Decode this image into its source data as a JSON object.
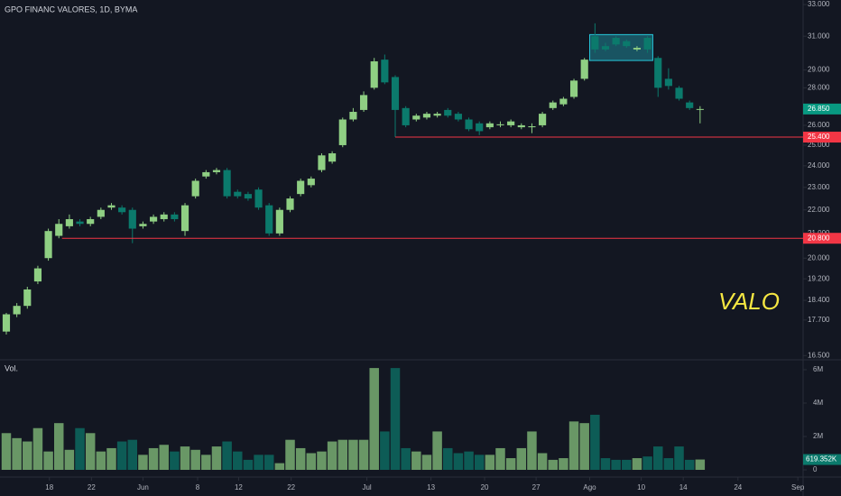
{
  "chart_data": {
    "type": "candlestick",
    "title": "GPO FINANC VALORES, 1D, BYMA",
    "volume_title": "Vol.",
    "annotation": "VALO",
    "up_color": "#8fcf83",
    "down_color": "#0b7a6c",
    "log_scale": true,
    "grid": false,
    "xlim": [
      -0.6,
      75.8
    ],
    "xticks": [
      {
        "value": 4.1,
        "label": "18"
      },
      {
        "value": 8.1,
        "label": "22"
      },
      {
        "value": 13,
        "label": "Jun"
      },
      {
        "value": 18.2,
        "label": "8"
      },
      {
        "value": 22.1,
        "label": "12"
      },
      {
        "value": 27.1,
        "label": "22"
      },
      {
        "value": 34.3,
        "label": "Jul"
      },
      {
        "value": 40.4,
        "label": "13"
      },
      {
        "value": 45.5,
        "label": "20"
      },
      {
        "value": 50.4,
        "label": "27"
      },
      {
        "value": 55.5,
        "label": "Ago"
      },
      {
        "value": 60.4,
        "label": "10"
      },
      {
        "value": 64.4,
        "label": "14"
      },
      {
        "value": 69.6,
        "label": "24"
      },
      {
        "value": 75.3,
        "label": "Sep"
      }
    ],
    "ylim": [
      16.39,
      33.3
    ],
    "yticks": [
      {
        "value": 16.5,
        "label": "16.500"
      },
      {
        "value": 17.7,
        "label": "17.700"
      },
      {
        "value": 18.4,
        "label": "18.400"
      },
      {
        "value": 19.2,
        "label": "19.200"
      },
      {
        "value": 20,
        "label": "20.000"
      },
      {
        "value": 21,
        "label": "21.000"
      },
      {
        "value": 22,
        "label": "22.000"
      },
      {
        "value": 23,
        "label": "23.000"
      },
      {
        "value": 24,
        "label": "24.000"
      },
      {
        "value": 25,
        "label": "25.000"
      },
      {
        "value": 26,
        "label": "26.000"
      },
      {
        "value": 28,
        "label": "28.000"
      },
      {
        "value": 29,
        "label": "29.000"
      },
      {
        "value": 31,
        "label": "31.000"
      },
      {
        "value": 33,
        "label": "33.000"
      }
    ],
    "open": [
      17.3,
      17.9,
      18.2,
      19.1,
      20.0,
      20.9,
      21.3,
      21.5,
      21.4,
      21.7,
      22.1,
      22.1,
      22.0,
      21.3,
      21.5,
      21.6,
      21.8,
      21.1,
      22.6,
      23.5,
      23.7,
      23.8,
      22.8,
      22.7,
      22.9,
      22.2,
      21.0,
      22.0,
      22.7,
      23.1,
      23.8,
      24.2,
      25.0,
      26.3,
      26.8,
      28.0,
      29.6,
      28.6,
      26.9,
      26.3,
      26.4,
      26.5,
      26.8,
      26.6,
      26.3,
      26.1,
      25.9,
      26.0,
      26.0,
      25.9,
      25.9,
      26.0,
      26.9,
      27.1,
      27.5,
      28.5,
      31.0,
      30.4,
      30.9,
      30.7,
      30.2,
      30.9,
      29.7,
      28.5,
      28.0,
      27.2,
      26.85
    ],
    "high": [
      17.95,
      18.3,
      18.9,
      19.7,
      21.2,
      21.6,
      21.8,
      21.6,
      21.7,
      22.1,
      22.3,
      22.2,
      22.1,
      21.5,
      21.8,
      21.9,
      21.9,
      22.3,
      23.4,
      23.8,
      23.9,
      23.9,
      22.9,
      22.8,
      23.0,
      22.3,
      22.1,
      22.6,
      23.4,
      23.5,
      24.6,
      24.7,
      26.4,
      26.9,
      27.8,
      29.7,
      29.9,
      28.7,
      27.0,
      26.6,
      26.7,
      26.7,
      26.9,
      26.7,
      26.4,
      26.2,
      26.2,
      26.2,
      26.3,
      26.1,
      26.1,
      26.7,
      27.3,
      27.5,
      28.5,
      29.7,
      31.8,
      30.6,
      31.0,
      30.8,
      30.4,
      31.0,
      29.8,
      29.1,
      28.1,
      27.3,
      27.0
    ],
    "low": [
      17.2,
      17.8,
      18.1,
      19.0,
      19.9,
      20.8,
      21.2,
      21.3,
      21.3,
      21.6,
      22.0,
      21.8,
      20.6,
      21.2,
      21.4,
      21.5,
      21.5,
      20.9,
      22.5,
      23.4,
      23.6,
      22.5,
      22.5,
      22.4,
      22.0,
      20.9,
      20.9,
      21.9,
      22.6,
      23.0,
      23.7,
      24.1,
      24.9,
      26.2,
      26.7,
      27.9,
      28.2,
      25.4,
      25.9,
      26.2,
      26.3,
      26.4,
      26.4,
      26.2,
      25.7,
      25.5,
      25.8,
      25.9,
      25.9,
      25.8,
      25.6,
      25.9,
      26.8,
      27.0,
      27.4,
      28.4,
      30.0,
      30.1,
      30.4,
      30.3,
      30.1,
      30.0,
      27.5,
      27.9,
      27.3,
      26.8,
      26.1
    ],
    "close": [
      17.9,
      18.2,
      18.8,
      19.6,
      21.1,
      21.4,
      21.6,
      21.4,
      21.6,
      22.0,
      22.2,
      21.9,
      21.2,
      21.4,
      21.7,
      21.8,
      21.6,
      22.2,
      23.3,
      23.7,
      23.8,
      22.6,
      22.6,
      22.5,
      22.1,
      21.0,
      22.0,
      22.5,
      23.3,
      23.4,
      24.5,
      24.6,
      26.3,
      26.7,
      27.6,
      29.5,
      28.3,
      26.8,
      26.0,
      26.5,
      26.6,
      26.6,
      26.5,
      26.3,
      25.8,
      25.7,
      26.1,
      26.05,
      26.2,
      26.0,
      25.95,
      26.6,
      27.2,
      27.4,
      28.4,
      29.6,
      30.2,
      30.2,
      30.5,
      30.4,
      30.3,
      30.2,
      28.0,
      28.1,
      27.4,
      26.9,
      26.85
    ],
    "volume": [
      2200000,
      1900000,
      1700000,
      2500000,
      1100000,
      2800000,
      1200000,
      2500000,
      2200000,
      1100000,
      1300000,
      1700000,
      1800000,
      900000,
      1300000,
      1500000,
      1100000,
      1400000,
      1200000,
      900000,
      1400000,
      1700000,
      1100000,
      600000,
      900000,
      900000,
      400000,
      1800000,
      1300000,
      1000000,
      1100000,
      1700000,
      1800000,
      1800000,
      1800000,
      6100000,
      2300000,
      6100000,
      1300000,
      1100000,
      900000,
      2300000,
      1300000,
      1000000,
      1100000,
      900000,
      900000,
      1300000,
      700000,
      1300000,
      2300000,
      1000000,
      600000,
      700000,
      2900000,
      2800000,
      3300000,
      700000,
      600000,
      600000,
      700000,
      800000,
      1400000,
      700000,
      1400000,
      600000,
      619352
    ],
    "volume_ylim": [
      0,
      6430000
    ],
    "volume_yticks": [
      0,
      {
        "value": 2000000,
        "label": "2M"
      },
      {
        "value": 4000000,
        "label": "4M"
      },
      {
        "value": 6000000,
        "label": "6M"
      }
    ],
    "volume_tag": {
      "value": 619352,
      "label": "619.352K",
      "color": "#0b7a6c"
    },
    "price_tag": {
      "value": 26.85,
      "label": "26.850",
      "color": "#089981"
    },
    "hlines": [
      {
        "value": 25.4,
        "label": "25.400",
        "color": "#f23645",
        "start": 37
      },
      {
        "value": 20.8,
        "label": "20.800",
        "color": "#f23645",
        "start": 5.3
      }
    ],
    "box": {
      "xlim": [
        55.5,
        61.5
      ],
      "ylim": [
        29.55,
        31.1
      ],
      "color": "#26c6da"
    }
  }
}
